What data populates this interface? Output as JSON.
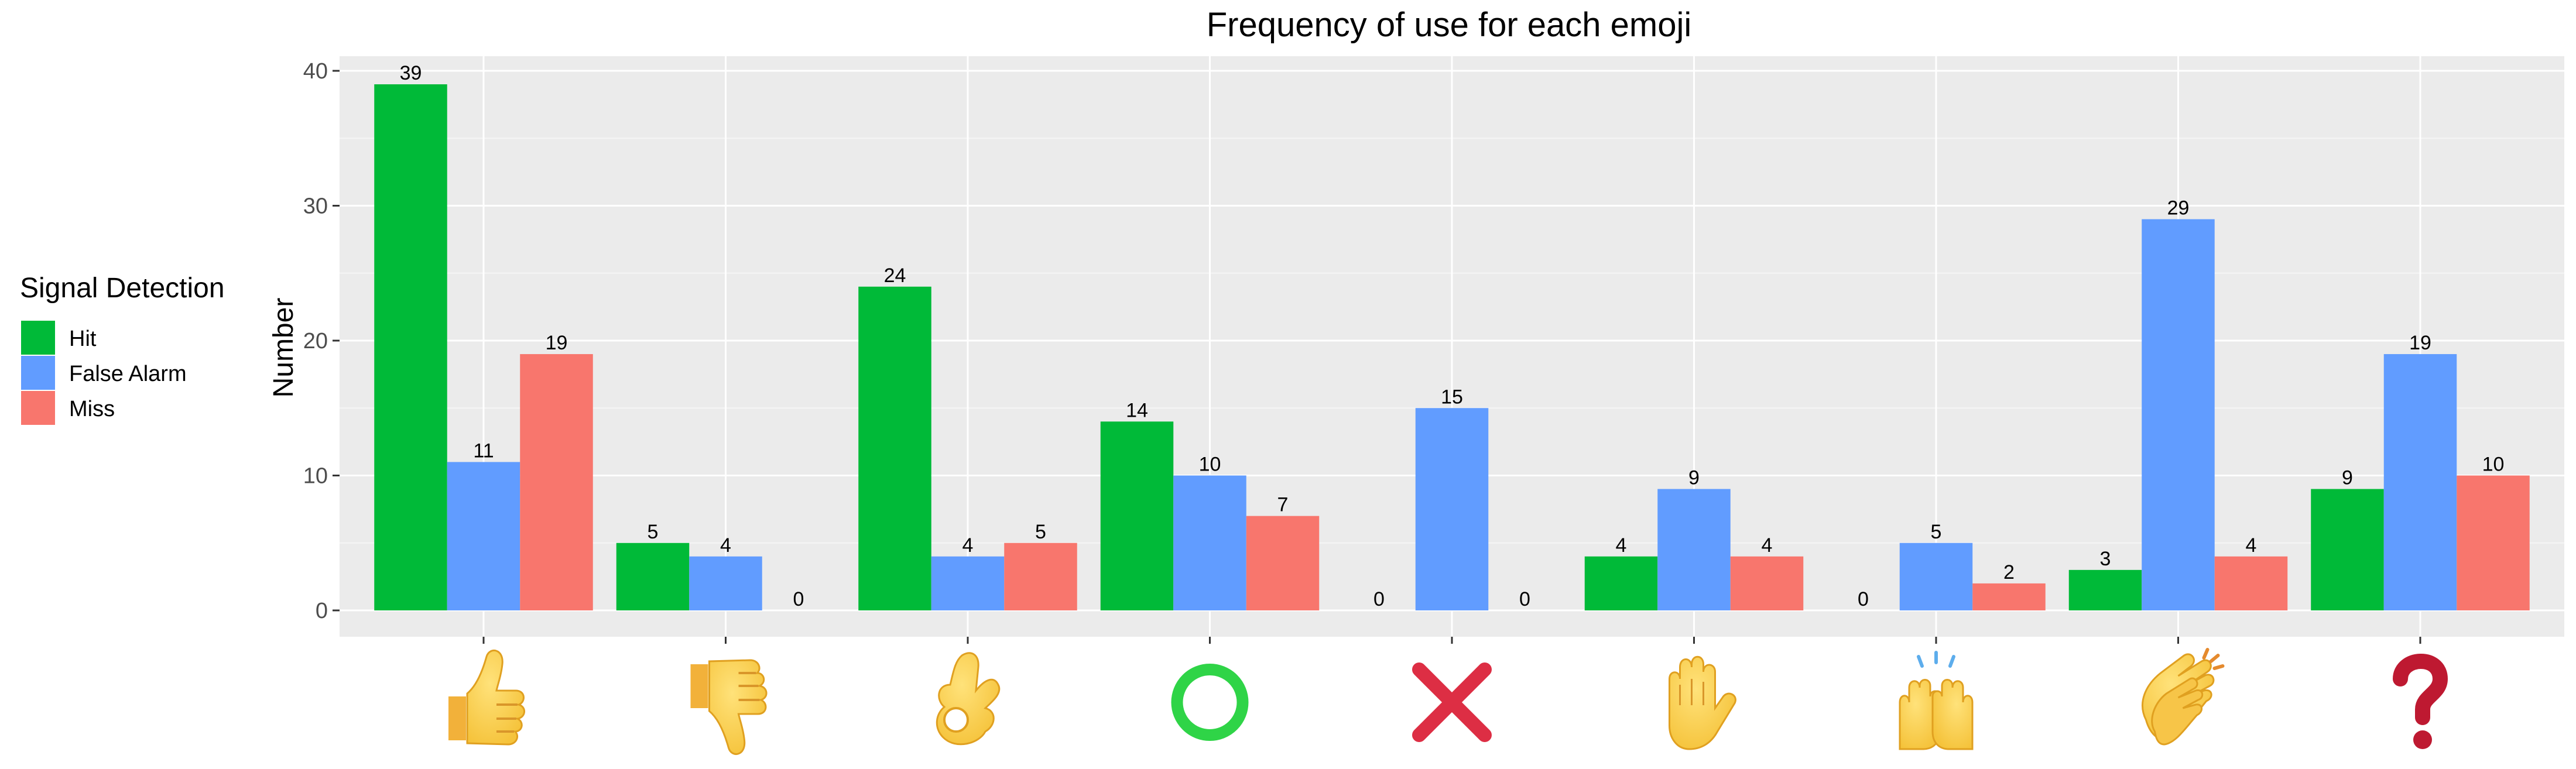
{
  "chart_data": {
    "type": "bar",
    "title": "Frequency of use for each emoji",
    "ylabel": "Number",
    "xlabel": "",
    "ylim": [
      0,
      40
    ],
    "yticks": [
      0,
      10,
      20,
      30,
      40
    ],
    "categories": [
      "thumbs-up",
      "thumbs-down",
      "ok-hand",
      "circle",
      "cross-mark",
      "raised-hand",
      "raising-hands",
      "clapping-hands",
      "question-mark"
    ],
    "category_icons": [
      "thumbs-up-icon",
      "thumbs-down-icon",
      "ok-hand-icon",
      "circle-icon",
      "cross-mark-icon",
      "raised-hand-icon",
      "raising-hands-icon",
      "clapping-hands-icon",
      "question-mark-icon"
    ],
    "series": [
      {
        "name": "Hit",
        "color": "#00BA38",
        "values": [
          39,
          5,
          24,
          14,
          0,
          4,
          0,
          3,
          9
        ]
      },
      {
        "name": "False Alarm",
        "color": "#619CFF",
        "values": [
          11,
          4,
          4,
          10,
          15,
          9,
          5,
          29,
          19
        ]
      },
      {
        "name": "Miss",
        "color": "#F8766D",
        "values": [
          19,
          0,
          5,
          7,
          0,
          4,
          2,
          4,
          10
        ]
      }
    ],
    "legend": {
      "title": "Signal Detection",
      "position": "left"
    },
    "grid": true,
    "panel_background": "#EBEBEB",
    "data_labels": true
  }
}
